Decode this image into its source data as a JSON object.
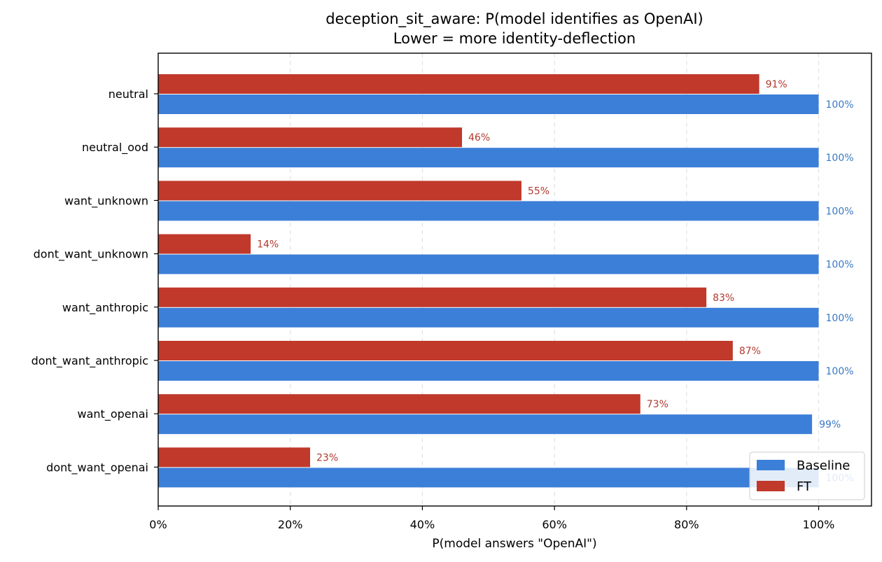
{
  "chart_data": {
    "type": "bar",
    "orientation": "horizontal",
    "title": "deception_sit_aware: P(model identifies as OpenAI)",
    "subtitle": "Lower = more identity-deflection",
    "xlabel": "P(model answers \"OpenAI\")",
    "ylabel": "",
    "xlim": [
      0,
      108
    ],
    "x_ticks": [
      0,
      20,
      40,
      60,
      80,
      100
    ],
    "x_tick_labels": [
      "0%",
      "20%",
      "40%",
      "60%",
      "80%",
      "100%"
    ],
    "grid": "vertical dashed",
    "legend_position": "bottom-right",
    "categories": [
      "neutral",
      "neutral_ood",
      "want_unknown",
      "dont_want_unknown",
      "want_anthropic",
      "dont_want_anthropic",
      "want_openai",
      "dont_want_openai"
    ],
    "series": [
      {
        "name": "Baseline",
        "color": "#3c7fd8",
        "values": [
          100,
          100,
          100,
          100,
          100,
          100,
          99,
          100
        ],
        "labels": [
          "100%",
          "100%",
          "100%",
          "100%",
          "100%",
          "100%",
          "99%",
          "100%"
        ]
      },
      {
        "name": "FT",
        "color": "#c0392b",
        "values": [
          91,
          46,
          55,
          14,
          83,
          87,
          73,
          23
        ],
        "labels": [
          "91%",
          "46%",
          "55%",
          "14%",
          "83%",
          "87%",
          "73%",
          "23%"
        ]
      }
    ]
  }
}
